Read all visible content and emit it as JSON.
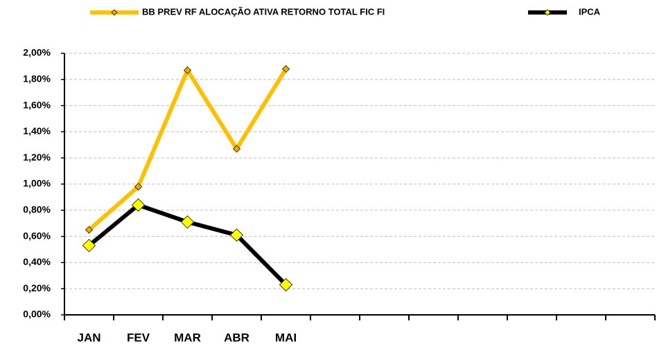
{
  "chart_data": {
    "type": "line",
    "categories": [
      "JAN",
      "FEV",
      "MAR",
      "ABR",
      "MAI",
      null,
      null,
      null,
      null,
      null,
      null,
      null
    ],
    "series": [
      {
        "name": "BB PREV RF ALOCAÇÃO ATIVA RETORNO TOTAL FIC FI",
        "color": "#ffc000",
        "marker_color": "#f5a700",
        "values": [
          0.65,
          0.98,
          1.87,
          1.27,
          1.88,
          null,
          null,
          null,
          null,
          null,
          null,
          null
        ]
      },
      {
        "name": "IPCA",
        "color": "#000000",
        "marker_color": "#ffff00",
        "values": [
          0.53,
          0.84,
          0.71,
          0.61,
          0.23,
          null,
          null,
          null,
          null,
          null,
          null,
          null
        ]
      }
    ],
    "ylim": [
      0,
      2
    ],
    "yticks": [
      {
        "value": 0,
        "label": "0,00%"
      },
      {
        "value": 0.2,
        "label": "0,20%"
      },
      {
        "value": 0.4,
        "label": "0,40%"
      },
      {
        "value": 0.6,
        "label": "0,60%"
      },
      {
        "value": 0.8,
        "label": "0,80%"
      },
      {
        "value": 1.0,
        "label": "1,00%"
      },
      {
        "value": 1.2,
        "label": "1,20%"
      },
      {
        "value": 1.4,
        "label": "1,40%"
      },
      {
        "value": 1.6,
        "label": "1,60%"
      },
      {
        "value": 1.8,
        "label": "1,80%"
      },
      {
        "value": 2.0,
        "label": "2,00%"
      }
    ],
    "grid": true,
    "legend": "top"
  }
}
